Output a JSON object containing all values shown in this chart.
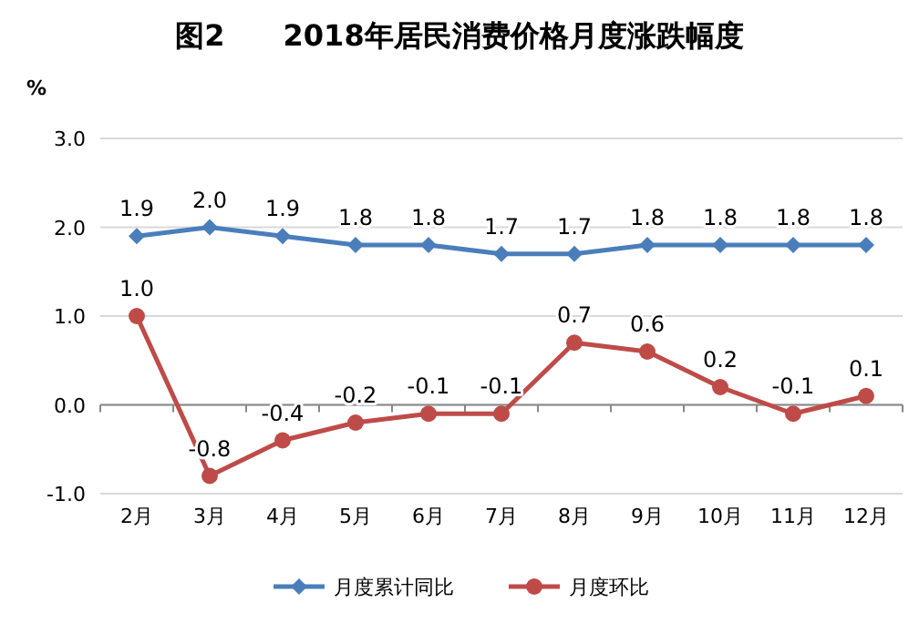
{
  "chart_data": {
    "type": "line",
    "title": "图2　　2018年居民消费价格月度涨跌幅度",
    "ylabel": "%",
    "categories": [
      "2月",
      "3月",
      "4月",
      "5月",
      "6月",
      "7月",
      "8月",
      "9月",
      "10月",
      "11月",
      "12月"
    ],
    "ylim": [
      -1,
      3
    ],
    "yticks": [
      {
        "value": -1,
        "label": "-1.0"
      },
      {
        "value": 0,
        "label": "0.0"
      },
      {
        "value": 1,
        "label": "1.0"
      },
      {
        "value": 2,
        "label": "2.0"
      },
      {
        "value": 3,
        "label": "3.0"
      }
    ],
    "grid": "y",
    "legend": "bottom",
    "series": [
      {
        "name": "月度累计同比",
        "color": "#4a7ebb",
        "marker": "diamond",
        "values": [
          1.9,
          2.0,
          1.9,
          1.8,
          1.8,
          1.7,
          1.7,
          1.8,
          1.8,
          1.8,
          1.8
        ],
        "value_labels": [
          "1.9",
          "2.0",
          "1.9",
          "1.8",
          "1.8",
          "1.7",
          "1.7",
          "1.8",
          "1.8",
          "1.8",
          "1.8"
        ]
      },
      {
        "name": "月度环比",
        "color": "#be4b48",
        "marker": "circle",
        "values": [
          1.0,
          -0.8,
          -0.4,
          -0.2,
          -0.1,
          -0.1,
          0.7,
          0.6,
          0.2,
          -0.1,
          0.1
        ],
        "value_labels": [
          "1.0",
          "-0.8",
          "-0.4",
          "-0.2",
          "-0.1",
          "-0.1",
          "0.7",
          "0.6",
          "0.2",
          "-0.1",
          "0.1"
        ]
      }
    ]
  }
}
